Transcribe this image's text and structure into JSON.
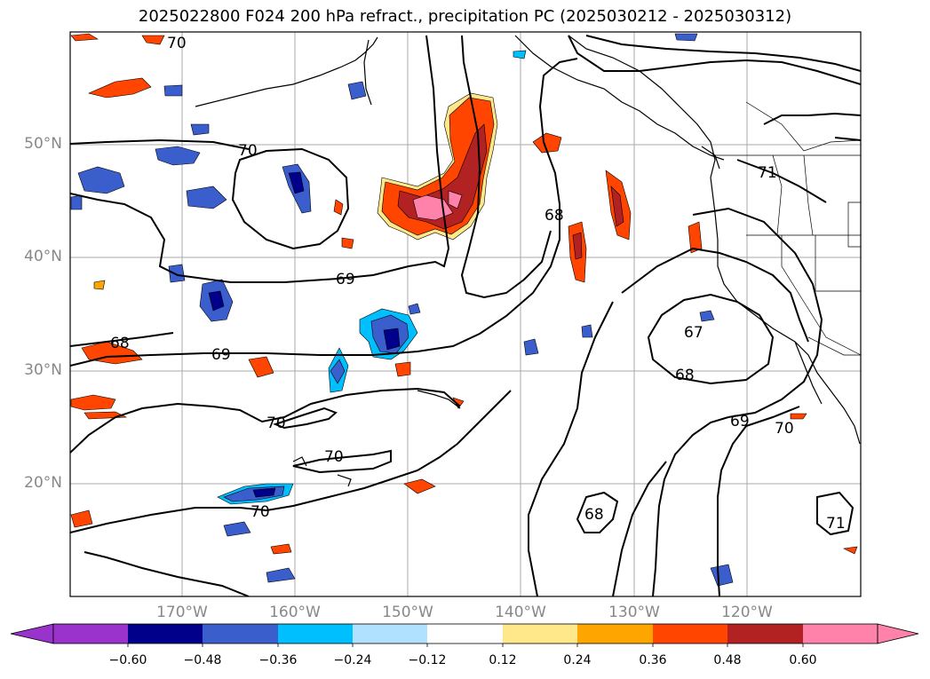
{
  "title": "2025022800 F024 200 hPa refract., precipitation PC (2025030212 - 2025030312)",
  "lat_labels": [
    "50°N",
    "40°N",
    "30°N",
    "20°N"
  ],
  "lon_labels": [
    "170°W",
    "160°W",
    "150°W",
    "140°W",
    "130°W",
    "120°W"
  ],
  "contour_labels": [
    "70",
    "70",
    "69",
    "68",
    "69",
    "70",
    "70",
    "70",
    "68",
    "71",
    "67",
    "68",
    "69",
    "70",
    "68",
    "71"
  ],
  "colorbar": {
    "ticks": [
      "−0.60",
      "−0.48",
      "−0.36",
      "−0.24",
      "−0.12",
      "0.12",
      "0.24",
      "0.36",
      "0.48",
      "0.60"
    ],
    "colors": [
      "#9933cc",
      "#00008b",
      "#3a5fcd",
      "#00bfff",
      "#b0e2ff",
      "#ffffff",
      "#ffe88a",
      "#ffa500",
      "#ff4500",
      "#b22222",
      "#ff82ab"
    ]
  }
}
